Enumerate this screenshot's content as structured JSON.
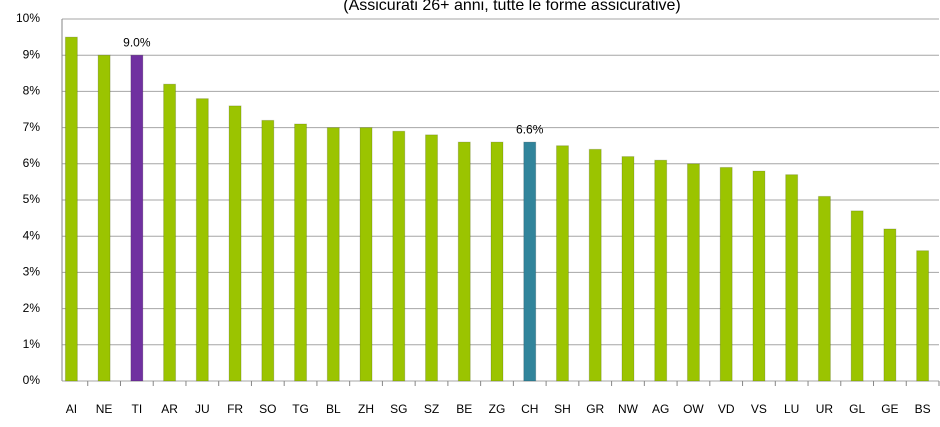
{
  "chart_data": {
    "type": "bar",
    "subtitle": "(Assicurati 26+ anni, tutte le forme assicurative)",
    "categories": [
      "AI",
      "NE",
      "TI",
      "AR",
      "JU",
      "FR",
      "SO",
      "TG",
      "BL",
      "ZH",
      "SG",
      "SZ",
      "BE",
      "ZG",
      "CH",
      "SH",
      "GR",
      "NW",
      "AG",
      "OW",
      "VD",
      "VS",
      "LU",
      "UR",
      "GL",
      "GE",
      "BS"
    ],
    "values": [
      9.5,
      9.0,
      9.0,
      8.2,
      7.8,
      7.6,
      7.2,
      7.1,
      7.0,
      7.0,
      6.9,
      6.8,
      6.6,
      6.6,
      6.6,
      6.5,
      6.4,
      6.2,
      6.1,
      6.0,
      5.9,
      5.8,
      5.7,
      5.1,
      4.7,
      4.2,
      3.6
    ],
    "value_labels": [
      null,
      null,
      "9.0%",
      null,
      null,
      null,
      null,
      null,
      null,
      null,
      null,
      null,
      null,
      null,
      "6.6%",
      null,
      null,
      null,
      null,
      null,
      null,
      null,
      null,
      null,
      null,
      null,
      null
    ],
    "colors": [
      "#9bc400",
      "#9bc400",
      "#7030a0",
      "#9bc400",
      "#9bc400",
      "#9bc400",
      "#9bc400",
      "#9bc400",
      "#9bc400",
      "#9bc400",
      "#9bc400",
      "#9bc400",
      "#9bc400",
      "#9bc400",
      "#31849b",
      "#9bc400",
      "#9bc400",
      "#9bc400",
      "#9bc400",
      "#9bc400",
      "#9bc400",
      "#9bc400",
      "#9bc400",
      "#9bc400",
      "#9bc400",
      "#9bc400",
      "#9bc400"
    ],
    "ylim": [
      0,
      10
    ],
    "yticks": [
      {
        "value": 0,
        "label": "0%"
      },
      {
        "value": 1,
        "label": "1%"
      },
      {
        "value": 2,
        "label": "2%"
      },
      {
        "value": 3,
        "label": "3%"
      },
      {
        "value": 4,
        "label": "4%"
      },
      {
        "value": 5,
        "label": "5%"
      },
      {
        "value": 6,
        "label": "6%"
      },
      {
        "value": 7,
        "label": "7%"
      },
      {
        "value": 8,
        "label": "8%"
      },
      {
        "value": 9,
        "label": "9%"
      },
      {
        "value": 10,
        "label": "10%"
      }
    ],
    "grid": true
  }
}
